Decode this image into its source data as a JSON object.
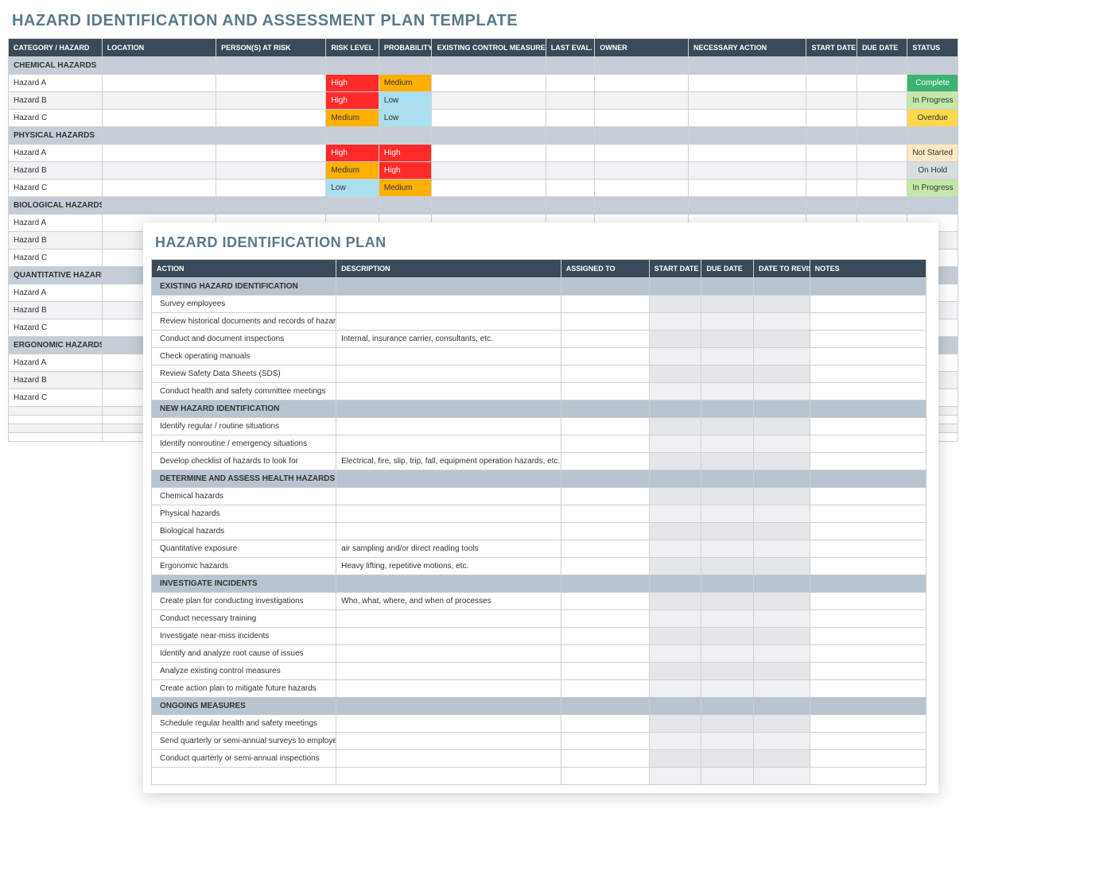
{
  "assessment": {
    "title": "HAZARD IDENTIFICATION AND ASSESSMENT PLAN TEMPLATE",
    "columns": [
      "CATEGORY / HAZARD",
      "LOCATION",
      "PERSON(S) AT RISK",
      "RISK LEVEL",
      "PROBABILITY",
      "EXISTING CONTROL MEASURE",
      "LAST EVAL. DATE",
      "OWNER",
      "NECESSARY ACTION",
      "START DATE",
      "DUE DATE",
      "STATUS"
    ],
    "colors": {
      "header_bg": "#3a4a58",
      "header_fg": "#ffffff",
      "section_bg": "#c5ced6",
      "risk_high": "#ff2a2a",
      "risk_medium": "#ffb000",
      "risk_low": "#a8e0ef",
      "status_complete": "#3cb371",
      "status_inprogress": "#c5e8a8",
      "status_overdue": "#ffd74d",
      "status_notstarted": "#ffe8c2",
      "status_onhold": "#d8dde2"
    },
    "rows": [
      {
        "type": "section",
        "label": "CHEMICAL HAZARDS"
      },
      {
        "type": "data",
        "hazard": "Hazard A",
        "risk": "High",
        "prob": "Medium",
        "status": "Complete",
        "status_class": "complete"
      },
      {
        "type": "data",
        "hazard": "Hazard B",
        "risk": "High",
        "prob": "Low",
        "status": "In Progress",
        "status_class": "inprogress"
      },
      {
        "type": "data",
        "hazard": "Hazard C",
        "risk": "Medium",
        "prob": "Low",
        "status": "Overdue",
        "status_class": "overdue"
      },
      {
        "type": "section",
        "label": "PHYSICAL HAZARDS"
      },
      {
        "type": "data",
        "hazard": "Hazard A",
        "risk": "High",
        "prob": "High",
        "status": "Not Started",
        "status_class": "notstarted"
      },
      {
        "type": "data",
        "hazard": "Hazard B",
        "risk": "Medium",
        "prob": "High",
        "status": "On Hold",
        "status_class": "onhold"
      },
      {
        "type": "data",
        "hazard": "Hazard C",
        "risk": "Low",
        "prob": "Medium",
        "status": "In Progress",
        "status_class": "inprogress"
      },
      {
        "type": "section",
        "label": "BIOLOGICAL HAZARDS"
      },
      {
        "type": "data",
        "hazard": "Hazard A"
      },
      {
        "type": "data",
        "hazard": "Hazard B"
      },
      {
        "type": "data",
        "hazard": "Hazard C"
      },
      {
        "type": "section",
        "label": "QUANTITATIVE HAZARDS"
      },
      {
        "type": "data",
        "hazard": "Hazard A"
      },
      {
        "type": "data",
        "hazard": "Hazard B"
      },
      {
        "type": "data",
        "hazard": "Hazard C"
      },
      {
        "type": "section",
        "label": "ERGONOMIC HAZARDS"
      },
      {
        "type": "data",
        "hazard": "Hazard A"
      },
      {
        "type": "data",
        "hazard": "Hazard B"
      },
      {
        "type": "data",
        "hazard": "Hazard C"
      },
      {
        "type": "data",
        "hazard": ""
      },
      {
        "type": "data",
        "hazard": ""
      },
      {
        "type": "data",
        "hazard": ""
      },
      {
        "type": "data",
        "hazard": ""
      }
    ]
  },
  "plan": {
    "title": "HAZARD IDENTIFICATION PLAN",
    "columns": [
      "ACTION",
      "DESCRIPTION",
      "ASSIGNED TO",
      "START DATE",
      "DUE DATE",
      "DATE TO REVISIT",
      "NOTES"
    ],
    "rows": [
      {
        "type": "section",
        "label": "EXISTING HAZARD IDENTIFICATION"
      },
      {
        "type": "data",
        "action": "Survey employees"
      },
      {
        "type": "data",
        "action": "Review historical documents and records of hazards"
      },
      {
        "type": "data",
        "action": "Conduct and document inspections",
        "desc": "Internal, insurance carrier, consultants, etc."
      },
      {
        "type": "data",
        "action": "Check operating manuals"
      },
      {
        "type": "data",
        "action": "Review Safety Data Sheets (SDS)"
      },
      {
        "type": "data",
        "action": "Conduct health and safety committee meetings"
      },
      {
        "type": "section",
        "label": "NEW HAZARD IDENTIFICATION"
      },
      {
        "type": "data",
        "action": "Identify regular / routine situations"
      },
      {
        "type": "data",
        "action": "Identify nonroutine / emergency situations"
      },
      {
        "type": "data",
        "action": "Develop checklist of hazards to look for",
        "desc": "Electrical, fire, slip, trip, fall, equipment operation hazards, etc."
      },
      {
        "type": "section",
        "label": "DETERMINE AND ASSESS HEALTH HAZARDS"
      },
      {
        "type": "data",
        "action": "Chemical hazards"
      },
      {
        "type": "data",
        "action": "Physical hazards"
      },
      {
        "type": "data",
        "action": "Biological hazards"
      },
      {
        "type": "data",
        "action": "Quantitative exposure",
        "desc": "air sampling and/or direct reading tools"
      },
      {
        "type": "data",
        "action": "Ergonomic hazards",
        "desc": "Heavy lifting, repetitive motions, etc."
      },
      {
        "type": "section",
        "label": "INVESTIGATE INCIDENTS"
      },
      {
        "type": "data",
        "action": "Create plan for conducting investigations",
        "desc": "Who, what, where, and when of processes"
      },
      {
        "type": "data",
        "action": "Conduct necessary training"
      },
      {
        "type": "data",
        "action": "Investigate near-miss incidents"
      },
      {
        "type": "data",
        "action": "Identify and analyze root cause of issues"
      },
      {
        "type": "data",
        "action": "Analyze existing control measures"
      },
      {
        "type": "data",
        "action": "Create action plan to mitigate future hazards"
      },
      {
        "type": "section",
        "label": "ONGOING MEASURES"
      },
      {
        "type": "data",
        "action": "Schedule regular health and safety meetings"
      },
      {
        "type": "data",
        "action": "Send quarterly or semi-annual surveys to employees"
      },
      {
        "type": "data",
        "action": "Conduct quarterly or semi-annual inspections"
      },
      {
        "type": "data",
        "action": ""
      }
    ]
  }
}
